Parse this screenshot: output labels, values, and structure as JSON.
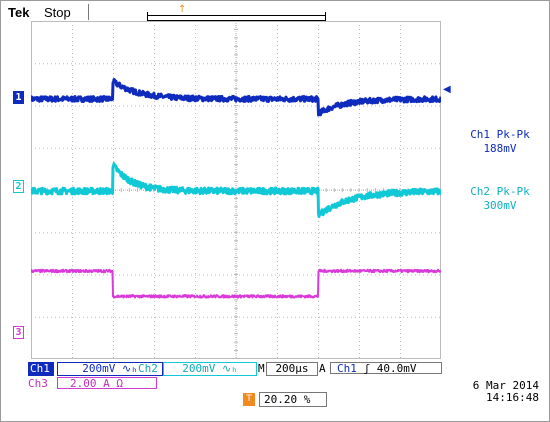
{
  "header": {
    "brand_bold": "Tek",
    "status": "Stop"
  },
  "measurements": {
    "ch1_title": "Ch1 Pk-Pk",
    "ch1_value": "188mV",
    "ch2_title": "Ch2 Pk-Pk",
    "ch2_value": "300mV"
  },
  "channel_markers": {
    "ch1": "1",
    "ch2": "2",
    "ch3": "3"
  },
  "status_bar": {
    "ch1_label": "Ch1",
    "ch1_scale": "200mV ∿ₕ",
    "ch2_label": "Ch2",
    "ch2_scale": "200mV ∿ₕ",
    "timebase_label": "M",
    "timebase": "200µs",
    "trigger_mode": "A",
    "trigger_source": "Ch1",
    "trigger_slope": "ʃ",
    "trigger_level": "40.0mV",
    "ch3_label": "Ch3",
    "ch3_scale": "2.00 A Ω",
    "position_icon": "T",
    "position_value": "20.20 %"
  },
  "datetime": {
    "date": "6 Mar  2014",
    "time": "14:16:48"
  },
  "colors": {
    "ch1": "#0f2bbd",
    "ch2": "#10c8d6",
    "ch3": "#d93ad9",
    "trigger": "#f08a1e",
    "grid": "#bbbbbb"
  },
  "icons": {
    "trigger_marker": "trigger-position-icon",
    "ch1_ref_arrow": "trigger-level-arrow-icon"
  },
  "chart_data": {
    "type": "line",
    "xlim": [
      -0.4,
      1.6
    ],
    "x_unit": "ms",
    "grid": true,
    "series": [
      {
        "channel": "Ch1",
        "baseline_div": 0,
        "step_events": [
          {
            "t": 0.0,
            "overshoot_div": 0.42,
            "decay": 0.12
          },
          {
            "t": 1.0,
            "overshoot_div": -0.35,
            "decay": 0.12
          }
        ],
        "noise_div": 0.06
      },
      {
        "channel": "Ch2",
        "baseline_div": 0,
        "step_events": [
          {
            "t": 0.0,
            "overshoot_div": 0.62,
            "decay": 0.09
          },
          {
            "t": 1.0,
            "overshoot_div": -0.58,
            "decay": 0.15
          }
        ],
        "noise_div": 0.07
      },
      {
        "channel": "Ch3",
        "levels": [
          {
            "from": -0.4,
            "to": 0.0,
            "div": 3.2
          },
          {
            "from": 0.0,
            "to": 1.0,
            "div": 2.6
          },
          {
            "from": 1.0,
            "to": 1.6,
            "div": 3.2
          }
        ],
        "noise_div": 0.03
      }
    ]
  }
}
